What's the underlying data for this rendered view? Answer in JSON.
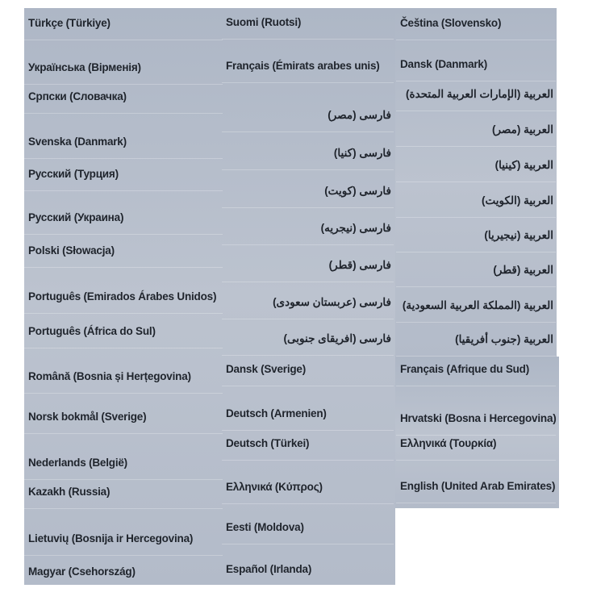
{
  "columns": [
    {
      "items": [
        "Türkçe (Türkiye)",
        "Українська (Вірменія)",
        "Српски (Словачка)",
        "Svenska (Danmark)",
        "Русский (Турция)",
        "Русский (Украина)",
        "Polski (Słowacja)",
        "Português (Emirados Árabes Unidos)",
        "Português (África do Sul)",
        "Română (Bosnia și Herțegovina)",
        "Norsk bokmål (Sverige)",
        "Nederlands (België)",
        "Kazakh (Russia)",
        "Lietuvių (Bosnija ir Hercegovina)",
        "Magyar (Csehország)"
      ]
    },
    {
      "items": [
        "Suomi (Ruotsi)",
        "Français (Émirats arabes unis)",
        "فارسی (مصر)",
        "فارسی (کنیا)",
        "فارسی (کویت)",
        "فارسی (نیجریه)",
        "فارسی (قطر)",
        "فارسی (عربستان سعودی)",
        "فارسی (افریقای جنوبی)",
        "Dansk (Sverige)",
        "Deutsch (Armenien)",
        "Deutsch (Türkei)",
        "Ελληνικά (Κύπρος)",
        "Eesti (Moldova)",
        "Español (Irlanda)"
      ]
    },
    {
      "items": [
        "Čeština (Slovensko)",
        "Dansk (Danmark)",
        "العربية (الإمارات العربية المتحدة)",
        "العربية (مصر)",
        "العربية (كينيا)",
        "العربية (الكويت)",
        "العربية (نيجيريا)",
        "العربية (قطر)",
        "العربية (المملكة العربية السعودية)",
        "العربية (جنوب أفريقيا)",
        "Français (Afrique du Sud)",
        "Hrvatski (Bosna i Hercegovina)",
        "Ελληνικά (Τουρκία)",
        "English (United Arab Emirates)"
      ]
    }
  ]
}
